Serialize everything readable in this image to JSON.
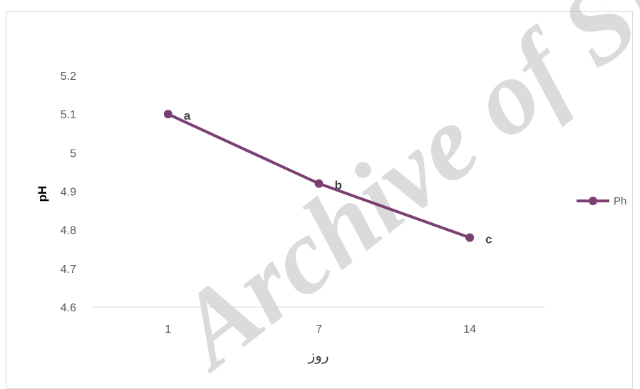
{
  "watermark": "Archive of SID",
  "colors": {
    "series": "#7b3f72",
    "axis": "#d9d9d9",
    "tick": "#595959"
  },
  "chart_data": {
    "type": "line",
    "categories": [
      "1",
      "7",
      "14"
    ],
    "series": [
      {
        "name": "Ph",
        "values": [
          5.1,
          4.92,
          4.78
        ],
        "point_labels": [
          "a",
          "b",
          "c"
        ]
      }
    ],
    "ylabel": "pH",
    "xlabel": "روز",
    "ylim": [
      4.6,
      5.2
    ],
    "yticks": [
      "4.6",
      "4.7",
      "4.8",
      "4.9",
      "5",
      "5.1",
      "5.2"
    ],
    "grid": false,
    "legend": "right"
  }
}
